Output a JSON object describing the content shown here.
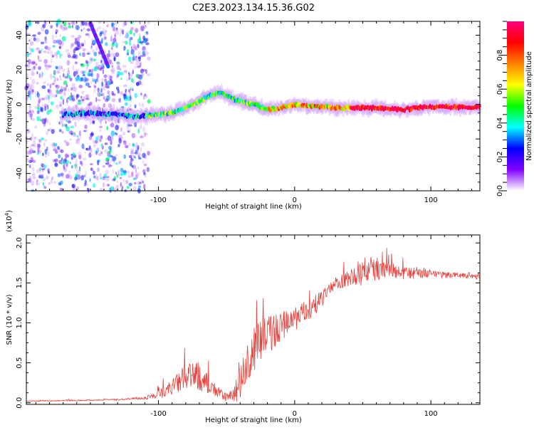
{
  "title": "C2E3.2023.134.15.36.G02",
  "chart_data": [
    {
      "type": "heatmap",
      "xlabel": "Height of straight line (km)",
      "ylabel": "Frequency (Hz)",
      "xlim": [
        -197,
        136
      ],
      "ylim": [
        -50,
        48
      ],
      "xticks": [
        -100,
        0,
        100
      ],
      "yticks": [
        -40,
        -20,
        0,
        20,
        40
      ],
      "colorbar": {
        "label": "Normalized spectral amplitude",
        "range": [
          0,
          1
        ],
        "ticks": [
          0.0,
          0.2,
          0.4,
          0.6,
          0.8
        ],
        "colors": [
          "#ffffff",
          "#8000ff",
          "#0000ff",
          "#00ffff",
          "#00ff00",
          "#ffff00",
          "#ff8000",
          "#ff0000",
          "#ff0080"
        ]
      },
      "ridge": {
        "x": [
          -170,
          -150,
          -130,
          -115,
          -100,
          -90,
          -80,
          -70,
          -60,
          -55,
          -50,
          -45,
          -40,
          -30,
          -20,
          -10,
          0,
          10,
          30,
          60,
          80,
          90,
          100,
          136
        ],
        "y": [
          -6,
          -5,
          -6,
          -7,
          -6,
          -5,
          -2,
          2,
          6,
          7,
          5,
          3,
          2,
          0,
          -3,
          -2,
          0,
          -1,
          -2,
          -2,
          -3,
          -2,
          -1.5,
          -1.5
        ]
      },
      "streak": {
        "x": [
          -150,
          -137
        ],
        "y": [
          47,
          22
        ]
      },
      "noise_region": [
        -197,
        -107
      ]
    },
    {
      "type": "line",
      "xlabel": "Height of straight line (km)",
      "ylabel": "SNR (10 * v/v)",
      "y_multiplier_label": "(x10",
      "y_multiplier_exp": "4",
      "y_multiplier_close": ")",
      "xlim": [
        -197,
        136
      ],
      "ylim": [
        -0.02,
        2.1
      ],
      "xticks": [
        -100,
        0,
        100
      ],
      "yticks": [
        0.0,
        0.5,
        1.0,
        1.5,
        2.0
      ],
      "ytick_labels": [
        "0.0",
        "0.5",
        "1.0",
        "1.5",
        "2.0"
      ],
      "color": "#e8403a",
      "series": {
        "x": [
          -197,
          -160,
          -130,
          -110,
          -100,
          -90,
          -80,
          -72,
          -65,
          -58,
          -50,
          -45,
          -40,
          -35,
          -30,
          -25,
          -20,
          -15,
          -10,
          0,
          10,
          20,
          25,
          30,
          40,
          50,
          60,
          70,
          80,
          90,
          100,
          110,
          120,
          136
        ],
        "y": [
          0.02,
          0.03,
          0.04,
          0.06,
          0.1,
          0.2,
          0.3,
          0.35,
          0.25,
          0.15,
          0.06,
          0.1,
          0.25,
          0.45,
          0.65,
          0.8,
          0.85,
          0.9,
          0.95,
          1.05,
          1.15,
          1.3,
          1.4,
          1.5,
          1.55,
          1.65,
          1.68,
          1.65,
          1.62,
          1.63,
          1.6,
          1.6,
          1.6,
          1.57
        ],
        "noise": [
          0.005,
          0.008,
          0.01,
          0.02,
          0.05,
          0.1,
          0.16,
          0.18,
          0.14,
          0.08,
          0.05,
          0.1,
          0.22,
          0.25,
          0.28,
          0.28,
          0.25,
          0.22,
          0.18,
          0.15,
          0.14,
          0.1,
          0.08,
          0.08,
          0.1,
          0.18,
          0.15,
          0.1,
          0.08,
          0.07,
          0.05,
          0.04,
          0.03,
          0.03
        ]
      }
    }
  ]
}
